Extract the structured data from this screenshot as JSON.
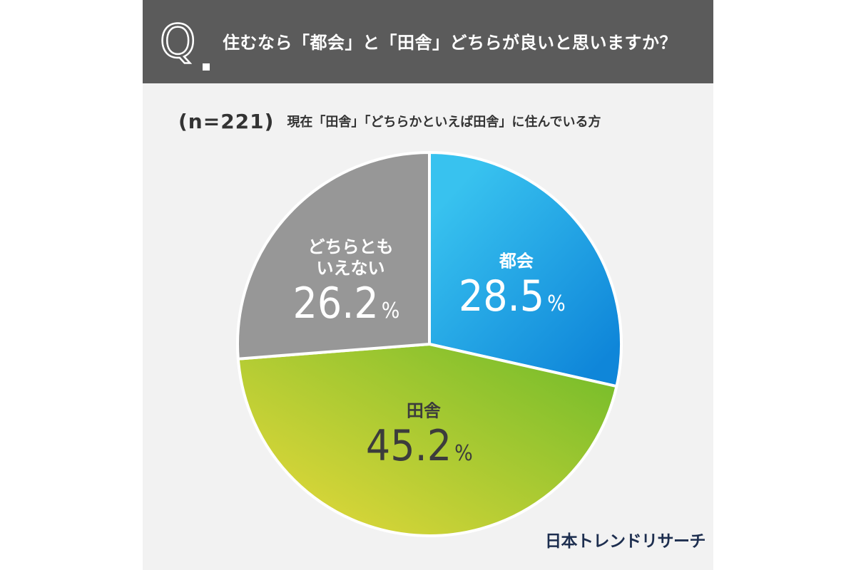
{
  "header": {
    "q_letter": "Q",
    "question": "住むなら「都会」と「田舎」どちらが良いと思いますか？"
  },
  "subheading": {
    "sample": "(n=221)",
    "description": "現在「田舎」「どちらかといえば田舎」に住んでいる方"
  },
  "brand": "日本トレンドリサーチ",
  "colors": {
    "header_bg": "#5b5b5b",
    "card_bg": "#f2f2f2",
    "city": "#1a9be0",
    "countryside": "#9ec93a",
    "neither": "#979797"
  },
  "chart_data": {
    "type": "pie",
    "title": "",
    "slices": [
      {
        "name": "都会",
        "lines": [
          "都会"
        ],
        "value": 28.5,
        "display": "28.5",
        "unit": "%",
        "color": "#1a9be0"
      },
      {
        "name": "田舎",
        "lines": [
          "田舎"
        ],
        "value": 45.2,
        "display": "45.2",
        "unit": "%",
        "color": "#9ec93a"
      },
      {
        "name": "どちらともいえない",
        "lines": [
          "どちらとも",
          "いえない"
        ],
        "value": 26.2,
        "display": "26.2",
        "unit": "%",
        "color": "#979797"
      }
    ],
    "start": "12 o'clock",
    "direction": "clockwise",
    "legend": "none (labels inside slices)"
  }
}
